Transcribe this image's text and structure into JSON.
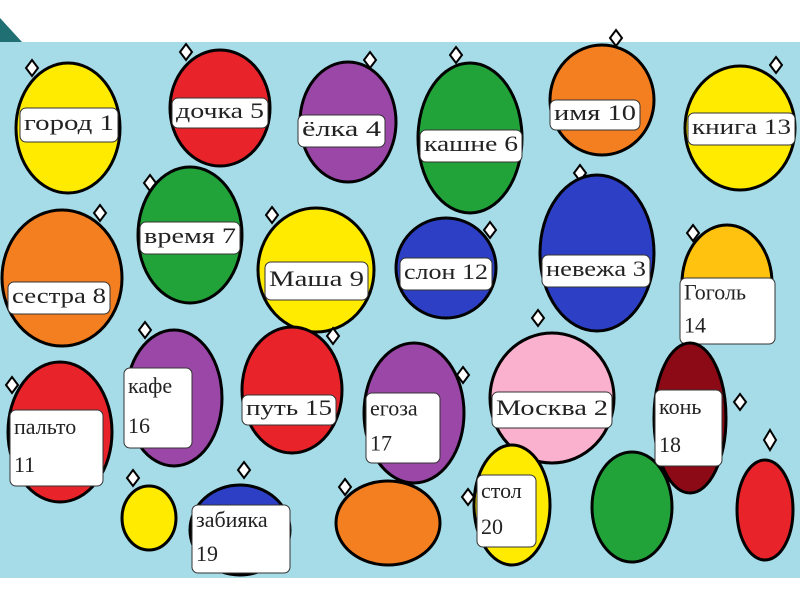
{
  "ornaments": [
    {
      "lines": [
        "город 1"
      ]
    },
    {
      "lines": [
        "дочка 5"
      ]
    },
    {
      "lines": [
        "ёлка 4"
      ]
    },
    {
      "lines": [
        "кашне 6"
      ]
    },
    {
      "lines": [
        "имя 10"
      ]
    },
    {
      "lines": [
        "книга 13"
      ]
    },
    {
      "lines": [
        "время 7"
      ]
    },
    {
      "lines": [
        "сестра 8"
      ]
    },
    {
      "lines": [
        "Маша 9"
      ]
    },
    {
      "lines": [
        "слон 12"
      ]
    },
    {
      "lines": [
        "невежа 3"
      ]
    },
    {
      "lines": [
        "Гоголь",
        "14"
      ]
    },
    {
      "lines": [
        "кафе",
        "16"
      ]
    },
    {
      "lines": [
        "путь 15"
      ]
    },
    {
      "lines": [
        "пальто",
        "11"
      ]
    },
    {
      "lines": [
        "егоза",
        "17"
      ]
    },
    {
      "lines": [
        "Москва 2"
      ]
    },
    {
      "lines": [
        "конь",
        "18"
      ]
    },
    {
      "lines": [
        "забияка",
        "19"
      ]
    },
    {
      "lines": [
        "стол",
        "20"
      ]
    }
  ]
}
